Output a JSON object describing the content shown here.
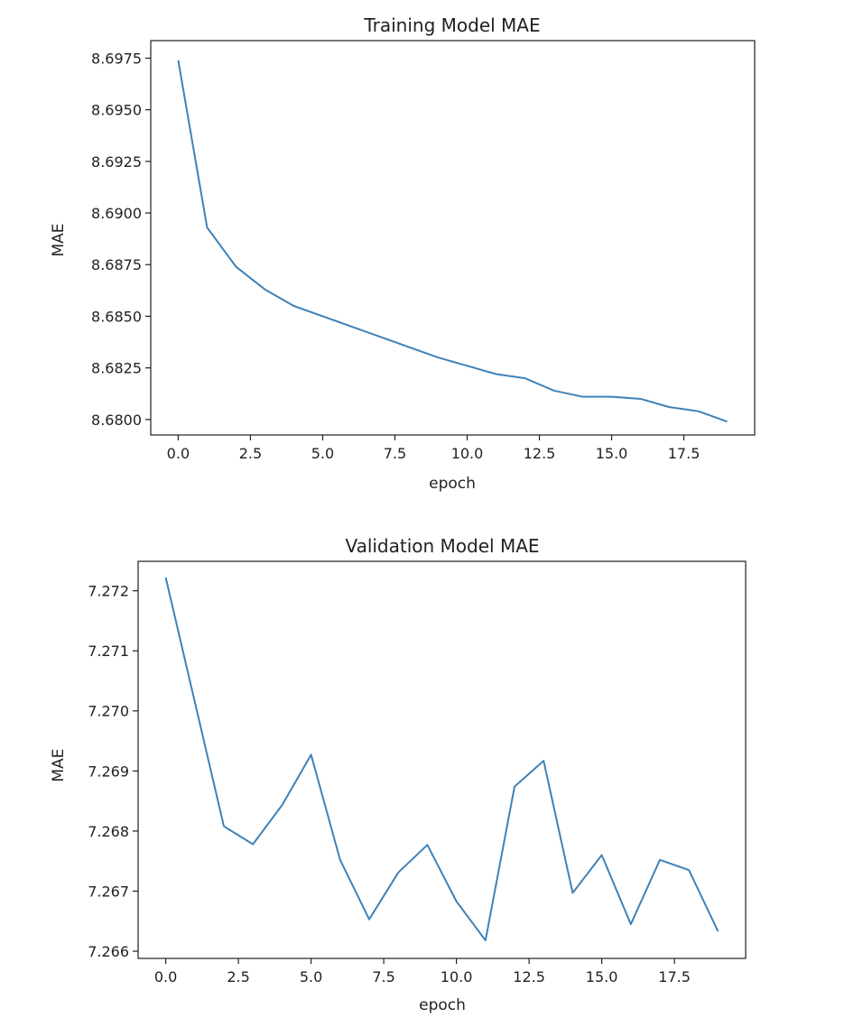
{
  "chart_data": [
    {
      "type": "line",
      "title": "Training Model MAE",
      "xlabel": "epoch",
      "ylabel": "MAE",
      "xlim": [
        -0.95,
        19.95
      ],
      "ylim": [
        8.67925,
        8.69835
      ],
      "xticks": [
        0.0,
        2.5,
        5.0,
        7.5,
        10.0,
        12.5,
        15.0,
        17.5
      ],
      "xtick_labels": [
        "0.0",
        "2.5",
        "5.0",
        "7.5",
        "10.0",
        "12.5",
        "15.0",
        "17.5"
      ],
      "yticks": [
        8.68,
        8.6825,
        8.685,
        8.6875,
        8.69,
        8.6925,
        8.695,
        8.6975
      ],
      "ytick_labels": [
        "8.6800",
        "8.6825",
        "8.6850",
        "8.6875",
        "8.6900",
        "8.6925",
        "8.6950",
        "8.6975"
      ],
      "grid": false,
      "color": "#3f82b8",
      "x": [
        0,
        1,
        2,
        3,
        4,
        5,
        6,
        7,
        8,
        9,
        10,
        11,
        12,
        13,
        14,
        15,
        16,
        17,
        18,
        19
      ],
      "y": [
        8.6974,
        8.6893,
        8.6874,
        8.6863,
        8.6855,
        8.685,
        8.6845,
        8.684,
        8.6835,
        8.683,
        8.6826,
        8.6822,
        8.682,
        8.6814,
        8.6811,
        8.6811,
        8.681,
        8.6806,
        8.6804,
        8.6799
      ]
    },
    {
      "type": "line",
      "title": "Validation Model MAE",
      "xlabel": "epoch",
      "ylabel": "MAE",
      "xlim": [
        -0.95,
        19.95
      ],
      "ylim": [
        7.26588,
        7.27249
      ],
      "xticks": [
        0.0,
        2.5,
        5.0,
        7.5,
        10.0,
        12.5,
        15.0,
        17.5
      ],
      "xtick_labels": [
        "0.0",
        "2.5",
        "5.0",
        "7.5",
        "10.0",
        "12.5",
        "15.0",
        "17.5"
      ],
      "yticks": [
        7.266,
        7.267,
        7.268,
        7.269,
        7.27,
        7.271,
        7.272
      ],
      "ytick_labels": [
        "7.266",
        "7.267",
        "7.268",
        "7.269",
        "7.270",
        "7.271",
        "7.272"
      ],
      "grid": false,
      "color": "#3f82b8",
      "x": [
        0,
        1,
        2,
        3,
        4,
        5,
        6,
        7,
        8,
        9,
        10,
        11,
        12,
        13,
        14,
        15,
        16,
        17,
        18,
        19
      ],
      "y": [
        7.27222,
        7.27015,
        7.26808,
        7.26778,
        7.26843,
        7.26927,
        7.26752,
        7.26653,
        7.26731,
        7.26777,
        7.26683,
        7.26618,
        7.26874,
        7.26917,
        7.26697,
        7.2676,
        7.26645,
        7.26752,
        7.26735,
        7.26633
      ]
    }
  ]
}
